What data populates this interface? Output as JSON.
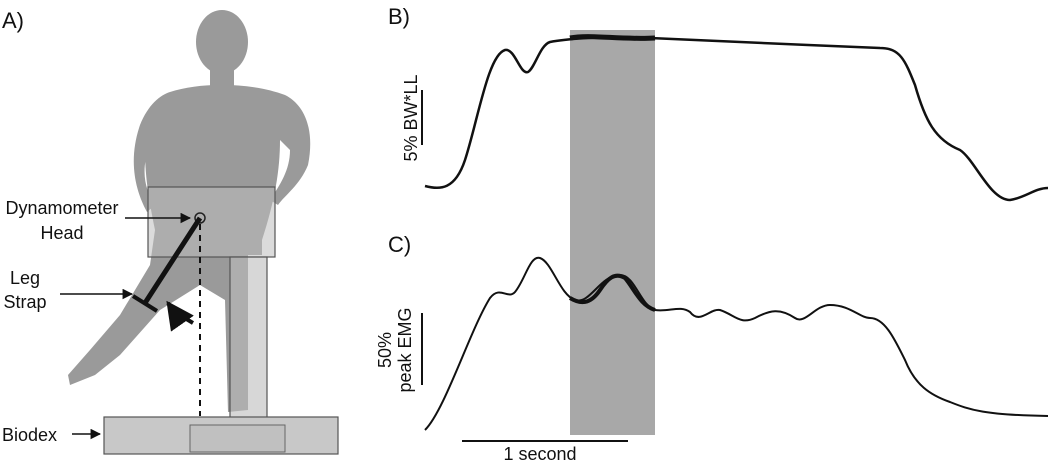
{
  "panels": {
    "a": "A)",
    "b": "B)",
    "c": "C)"
  },
  "labels": {
    "dynamometer": [
      "Dynamometer",
      "Head"
    ],
    "leg_strap": [
      "Leg",
      "Strap"
    ],
    "biodex": "Biodex"
  },
  "scale_bars": {
    "force": "5% BW*LL",
    "emg": [
      "50%",
      "peak EMG"
    ],
    "time": "1 second"
  }
}
